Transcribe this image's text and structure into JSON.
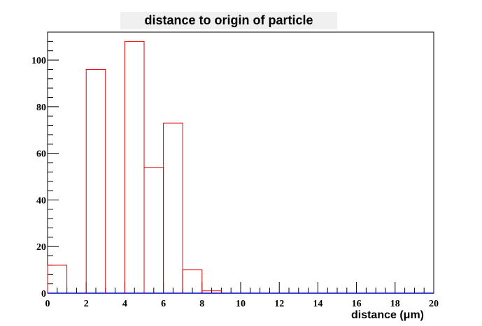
{
  "chart_data": {
    "type": "bar",
    "title": "distance to origin of particle",
    "xlabel": "distance (μm)",
    "ylabel": "",
    "xlim": [
      0,
      20
    ],
    "ylim": [
      0,
      112
    ],
    "grid": false,
    "x_ticks": [
      0,
      2,
      4,
      6,
      8,
      10,
      12,
      14,
      16,
      18,
      20
    ],
    "y_ticks": [
      0,
      20,
      40,
      60,
      80,
      100
    ],
    "bin_edges": [
      0,
      1,
      2,
      3,
      4,
      5,
      6,
      7,
      8,
      9,
      10,
      11,
      12,
      13,
      14,
      15,
      16,
      17,
      18,
      19,
      20
    ],
    "values": [
      12,
      0,
      96,
      0,
      108,
      54,
      73,
      10,
      1,
      0,
      0,
      0,
      0,
      0,
      0,
      0,
      0,
      0,
      0,
      0
    ],
    "colors": {
      "histogram": "#dd0000",
      "baseline": "#0000cc",
      "frame": "#000000",
      "title_background": "#f0f0f0"
    }
  }
}
